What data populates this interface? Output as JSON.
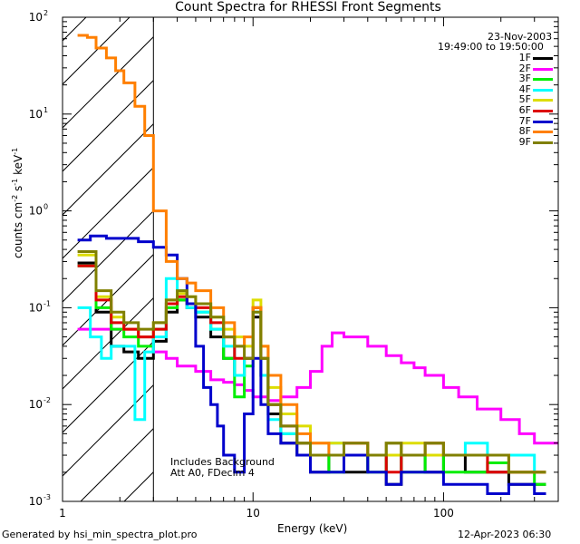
{
  "chart_data": {
    "type": "line",
    "title": "Count Spectra for RHESSI Front Segments",
    "xlabel": "Energy (keV)",
    "ylabel_base": "counts cm",
    "ylabel_sup1": "-2",
    "ylabel_mid": " s",
    "ylabel_sup2": "-1",
    "ylabel_mid2": " keV",
    "ylabel_sup3": "-1",
    "xscale": "log",
    "yscale": "log",
    "xlim": [
      1,
      400
    ],
    "ylim": [
      0.001,
      100
    ],
    "x_ticks": [
      {
        "v": 1,
        "label": "1"
      },
      {
        "v": 10,
        "label": "10"
      },
      {
        "v": 100,
        "label": "100"
      }
    ],
    "y_ticks": [
      {
        "v": 100,
        "base": "10",
        "exp": "2"
      },
      {
        "v": 10,
        "base": "10",
        "exp": "1"
      },
      {
        "v": 1,
        "base": "10",
        "exp": "0"
      },
      {
        "v": 0.1,
        "base": "10",
        "exp": "-1"
      },
      {
        "v": 0.01,
        "base": "10",
        "exp": "-2"
      },
      {
        "v": 0.001,
        "base": "10",
        "exp": "-3"
      }
    ],
    "hatch_region": [
      1,
      3
    ],
    "date": "23-Nov-2003",
    "time_range": "19:49:00 to 19:50:00",
    "annotation_lines": [
      "Includes Background",
      "Att A0, FDecim 4"
    ],
    "series": [
      {
        "name": "1F",
        "color": "#000000",
        "x": [
          1.2,
          1.5,
          1.8,
          2.1,
          2.5,
          3.0,
          3.5,
          4.0,
          4.5,
          5.0,
          6.0,
          7.0,
          8.0,
          9.0,
          10.0,
          11.0,
          12.0,
          14.0,
          17.0,
          20.0,
          25.0,
          30.0,
          40.0,
          50.0,
          60.0,
          80.0,
          100.0,
          130.0,
          170.0,
          220.0,
          300.0
        ],
        "y": [
          0.29,
          0.09,
          0.04,
          0.035,
          0.03,
          0.045,
          0.09,
          0.12,
          0.1,
          0.08,
          0.05,
          0.03,
          0.02,
          0.03,
          0.08,
          0.02,
          0.008,
          0.004,
          0.003,
          0.002,
          0.003,
          0.002,
          0.003,
          0.0015,
          0.003,
          0.002,
          0.003,
          0.002,
          0.002,
          0.0015,
          0.0015
        ]
      },
      {
        "name": "2F",
        "color": "#ff00ff",
        "x": [
          1.2,
          1.5,
          1.8,
          2.1,
          2.5,
          3.0,
          3.5,
          4.0,
          5.0,
          6.0,
          7.0,
          8.0,
          9.0,
          10.0,
          12.0,
          14.0,
          17.0,
          20.0,
          23.0,
          26.0,
          30.0,
          40.0,
          50.0,
          60.0,
          70.0,
          80.0,
          100.0,
          120.0,
          150.0,
          200.0,
          250.0,
          300.0,
          350.0
        ],
        "y": [
          0.06,
          0.06,
          0.06,
          0.06,
          0.05,
          0.035,
          0.03,
          0.025,
          0.022,
          0.018,
          0.017,
          0.016,
          0.014,
          0.012,
          0.011,
          0.012,
          0.015,
          0.022,
          0.04,
          0.055,
          0.05,
          0.04,
          0.032,
          0.027,
          0.024,
          0.02,
          0.015,
          0.012,
          0.009,
          0.007,
          0.005,
          0.004,
          0.004
        ]
      },
      {
        "name": "3F",
        "color": "#00ee00",
        "x": [
          1.2,
          1.5,
          1.8,
          2.1,
          2.5,
          3.0,
          3.5,
          4.0,
          4.5,
          5.0,
          6.0,
          7.0,
          8.0,
          9.0,
          10.0,
          11.0,
          12.0,
          14.0,
          17.0,
          20.0,
          25.0,
          30.0,
          40.0,
          50.0,
          60.0,
          80.0,
          100.0,
          130.0,
          170.0,
          220.0,
          300.0
        ],
        "y": [
          0.27,
          0.1,
          0.06,
          0.05,
          0.04,
          0.06,
          0.1,
          0.12,
          0.11,
          0.09,
          0.06,
          0.03,
          0.012,
          0.025,
          0.1,
          0.03,
          0.01,
          0.005,
          0.004,
          0.003,
          0.002,
          0.003,
          0.002,
          0.003,
          0.002,
          0.003,
          0.002,
          0.002,
          0.0025,
          0.002,
          0.0015
        ]
      },
      {
        "name": "4F",
        "color": "#00ffff",
        "x": [
          1.2,
          1.4,
          1.6,
          1.8,
          2.1,
          2.4,
          2.7,
          3.0,
          3.5,
          4.0,
          4.5,
          5.0,
          6.0,
          7.0,
          8.0,
          9.0,
          10.0,
          11.0,
          12.0,
          14.0,
          17.0,
          20.0,
          25.0,
          30.0,
          40.0,
          50.0,
          60.0,
          80.0,
          100.0,
          130.0,
          170.0,
          220.0,
          300.0
        ],
        "y": [
          0.1,
          0.05,
          0.03,
          0.04,
          0.04,
          0.007,
          0.035,
          0.05,
          0.2,
          0.15,
          0.1,
          0.09,
          0.06,
          0.04,
          0.02,
          0.03,
          0.09,
          0.02,
          0.007,
          0.005,
          0.004,
          0.003,
          0.004,
          0.003,
          0.003,
          0.004,
          0.003,
          0.004,
          0.003,
          0.004,
          0.003,
          0.003,
          0.002
        ]
      },
      {
        "name": "5F",
        "color": "#dddd00",
        "x": [
          1.2,
          1.5,
          1.8,
          2.1,
          2.5,
          3.0,
          3.5,
          4.0,
          4.5,
          5.0,
          6.0,
          7.0,
          8.0,
          9.0,
          10.0,
          11.0,
          12.0,
          14.0,
          17.0,
          20.0,
          25.0,
          30.0,
          40.0,
          50.0,
          60.0,
          80.0,
          100.0,
          130.0,
          170.0,
          220.0,
          300.0
        ],
        "y": [
          0.35,
          0.13,
          0.08,
          0.06,
          0.05,
          0.07,
          0.12,
          0.14,
          0.13,
          0.11,
          0.08,
          0.06,
          0.05,
          0.04,
          0.12,
          0.04,
          0.015,
          0.008,
          0.006,
          0.004,
          0.004,
          0.003,
          0.003,
          0.003,
          0.004,
          0.003,
          0.003,
          0.003,
          0.003,
          0.002,
          0.002
        ]
      },
      {
        "name": "6F",
        "color": "#dd0000",
        "x": [
          1.2,
          1.5,
          1.8,
          2.1,
          2.5,
          3.0,
          3.5,
          4.0,
          4.5,
          5.0,
          6.0,
          7.0,
          8.0,
          9.0,
          10.0,
          11.0,
          12.0,
          14.0,
          17.0,
          20.0,
          25.0,
          30.0,
          40.0,
          50.0,
          60.0,
          80.0,
          100.0,
          130.0,
          170.0,
          220.0,
          300.0
        ],
        "y": [
          0.27,
          0.12,
          0.07,
          0.06,
          0.05,
          0.06,
          0.11,
          0.13,
          0.11,
          0.1,
          0.07,
          0.05,
          0.03,
          0.03,
          0.1,
          0.03,
          0.01,
          0.006,
          0.004,
          0.003,
          0.003,
          0.004,
          0.003,
          0.002,
          0.003,
          0.004,
          0.003,
          0.003,
          0.002,
          0.002,
          0.002
        ]
      },
      {
        "name": "7F",
        "color": "#0000cc",
        "x": [
          1.2,
          1.4,
          1.7,
          2.0,
          2.5,
          3.0,
          3.5,
          4.0,
          4.5,
          5.0,
          5.5,
          6.0,
          6.5,
          7.0,
          8.0,
          9.0,
          10.0,
          11.0,
          12.0,
          14.0,
          17.0,
          20.0,
          25.0,
          30.0,
          40.0,
          50.0,
          60.0,
          80.0,
          100.0,
          130.0,
          170.0,
          220.0,
          300.0
        ],
        "y": [
          0.5,
          0.55,
          0.52,
          0.52,
          0.48,
          0.42,
          0.35,
          0.2,
          0.11,
          0.04,
          0.015,
          0.01,
          0.006,
          0.003,
          0.002,
          0.008,
          0.03,
          0.01,
          0.005,
          0.004,
          0.003,
          0.002,
          0.002,
          0.003,
          0.002,
          0.0015,
          0.002,
          0.002,
          0.0015,
          0.0015,
          0.0012,
          0.0015,
          0.0012
        ]
      },
      {
        "name": "8F",
        "color": "#ff7f00",
        "x": [
          1.2,
          1.35,
          1.5,
          1.7,
          1.9,
          2.1,
          2.4,
          2.7,
          3.0,
          3.5,
          4.0,
          4.5,
          5.0,
          6.0,
          7.0,
          8.0,
          9.0,
          10.0,
          11.0,
          12.0,
          14.0,
          17.0,
          20.0,
          25.0,
          30.0,
          40.0,
          50.0,
          60.0,
          80.0,
          100.0,
          130.0,
          170.0,
          220.0,
          300.0
        ],
        "y": [
          65.0,
          62.0,
          48.0,
          38.0,
          28.0,
          21.0,
          12.0,
          6.0,
          1.0,
          0.3,
          0.2,
          0.18,
          0.15,
          0.1,
          0.07,
          0.04,
          0.05,
          0.1,
          0.04,
          0.02,
          0.01,
          0.005,
          0.004,
          0.003,
          0.004,
          0.003,
          0.004,
          0.003,
          0.004,
          0.003,
          0.003,
          0.003,
          0.002,
          0.002
        ]
      },
      {
        "name": "9F",
        "color": "#808000",
        "x": [
          1.2,
          1.5,
          1.8,
          2.1,
          2.5,
          3.0,
          3.5,
          4.0,
          4.5,
          5.0,
          6.0,
          7.0,
          8.0,
          9.0,
          10.0,
          11.0,
          12.0,
          14.0,
          17.0,
          20.0,
          25.0,
          30.0,
          40.0,
          50.0,
          60.0,
          80.0,
          100.0,
          130.0,
          170.0,
          220.0,
          300.0
        ],
        "y": [
          0.38,
          0.15,
          0.09,
          0.07,
          0.06,
          0.07,
          0.12,
          0.15,
          0.13,
          0.11,
          0.08,
          0.05,
          0.04,
          0.03,
          0.09,
          0.03,
          0.01,
          0.006,
          0.004,
          0.003,
          0.003,
          0.004,
          0.003,
          0.004,
          0.003,
          0.004,
          0.003,
          0.003,
          0.003,
          0.002,
          0.002
        ]
      }
    ]
  },
  "footer": {
    "generated_by": "Generated by hsi_min_spectra_plot.pro",
    "timestamp": "12-Apr-2023 06:30"
  }
}
